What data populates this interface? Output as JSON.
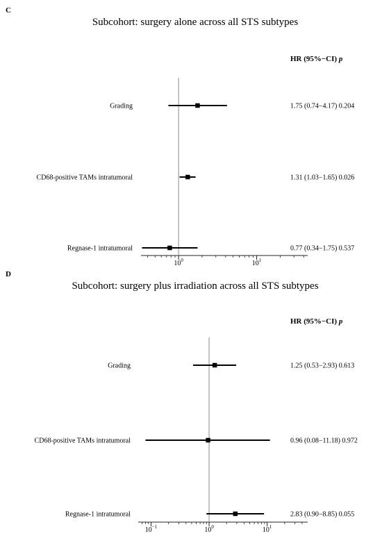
{
  "chart_data": [
    {
      "type": "forest",
      "panel": "C",
      "title": "Subcohort: surgery alone across all STS subtypes",
      "header": {
        "main": "HR (95%−CI)",
        "p": "p"
      },
      "x_scale": "log10",
      "xlim": [
        0.33,
        45
      ],
      "reference_line": 1,
      "xticks": [
        {
          "value": 1,
          "base": "10",
          "exp": "0"
        },
        {
          "value": 10,
          "base": "10",
          "exp": "1"
        }
      ],
      "rows": [
        {
          "label": "Grading",
          "hr": 1.75,
          "lo": 0.74,
          "hi": 4.17,
          "text": "1.75 (0.74−4.17) 0.204"
        },
        {
          "label": "CD68-positive TAMs intratumoral",
          "hr": 1.31,
          "lo": 1.03,
          "hi": 1.65,
          "text": "1.31 (1.03−1.65) 0.026"
        },
        {
          "label": "Regnase-1 intratumoral",
          "hr": 0.77,
          "lo": 0.34,
          "hi": 1.75,
          "text": "0.77 (0.34−1.75) 0.537"
        }
      ]
    },
    {
      "type": "forest",
      "panel": "D",
      "title": "Subcohort: surgery plus irradiation across all STS subtypes",
      "header": {
        "main": "HR (95%−CI)",
        "p": "p"
      },
      "x_scale": "log10",
      "xlim": [
        0.06,
        50
      ],
      "reference_line": 1,
      "xticks": [
        {
          "value": 0.1,
          "base": "10",
          "exp": "−1"
        },
        {
          "value": 1,
          "base": "10",
          "exp": "0"
        },
        {
          "value": 10,
          "base": "10",
          "exp": "1"
        }
      ],
      "rows": [
        {
          "label": "Grading",
          "hr": 1.25,
          "lo": 0.53,
          "hi": 2.93,
          "text": "1.25 (0.53−2.93) 0.613"
        },
        {
          "label": "CD68-positive TAMs intratumoral",
          "hr": 0.96,
          "lo": 0.08,
          "hi": 11.18,
          "text": "0.96 (0.08−11.18) 0.972"
        },
        {
          "label": "Regnase-1 intratumoral",
          "hr": 2.83,
          "lo": 0.9,
          "hi": 8.85,
          "text": "2.83 (0.90−8.85) 0.055"
        }
      ]
    }
  ]
}
